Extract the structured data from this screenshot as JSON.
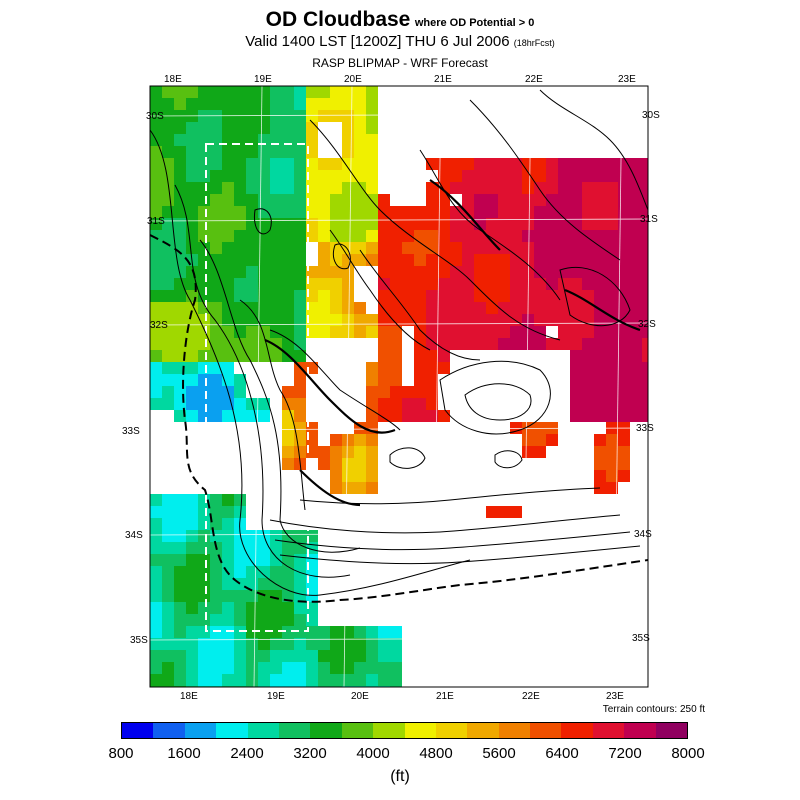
{
  "title": {
    "main": "OD Cloudbase",
    "sub": "where OD Potential > 0",
    "valid": "Valid 1400 LST [1200Z] THU 6 Jul 2006",
    "forecast_hour": "(18hrFcst)",
    "model": "RASP BLIPMAP - WRF Forecast"
  },
  "map": {
    "top_lon_labels": [
      "18E",
      "19E",
      "20E",
      "21E",
      "22E",
      "23E"
    ],
    "bottom_lon_labels": [
      "18E",
      "19E",
      "20E",
      "21E",
      "22E",
      "23E"
    ],
    "left_lat_labels": [
      "30S",
      "31S",
      "32S",
      "33S",
      "34S",
      "35S"
    ],
    "right_lat_labels": [
      "30S",
      "31S",
      "32S",
      "33S",
      "34S",
      "35S"
    ],
    "terrain_note": "Terrain contours: 250 ft"
  },
  "colorbar": {
    "colors": [
      "#0000ee",
      "#1060f0",
      "#0aa0f0",
      "#00eeee",
      "#00d8a0",
      "#10c060",
      "#10a818",
      "#58c010",
      "#a0d800",
      "#f0f000",
      "#f0d000",
      "#f0a800",
      "#f08000",
      "#f05000",
      "#f02000",
      "#e01030",
      "#c00050",
      "#900060"
    ],
    "tick_labels": [
      "800",
      "1600",
      "2400",
      "3200",
      "4000",
      "4800",
      "5600",
      "6400",
      "7200",
      "8000"
    ],
    "units": "(ft)"
  }
}
